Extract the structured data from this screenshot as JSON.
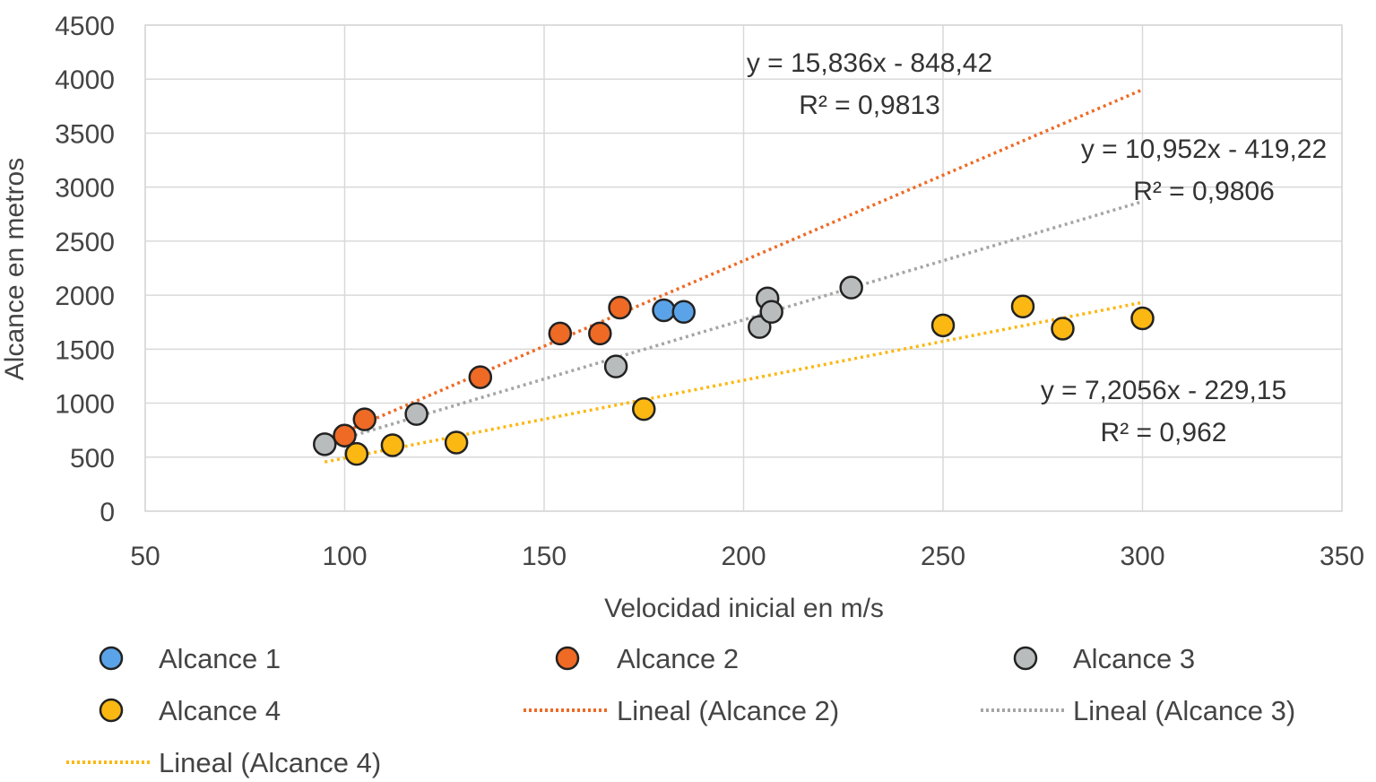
{
  "chart_data": {
    "type": "scatter",
    "title": "",
    "xlabel": "Velocidad inicial en m/s",
    "ylabel": "Alcance en metros",
    "xlim": [
      50,
      350
    ],
    "ylim": [
      0,
      4500
    ],
    "x_ticks": [
      50,
      100,
      150,
      200,
      250,
      300,
      350
    ],
    "y_ticks": [
      0,
      500,
      1000,
      1500,
      2000,
      2500,
      3000,
      3500,
      4000,
      4500
    ],
    "grid": true,
    "legend_position": "bottom",
    "series": [
      {
        "name": "Alcance 1",
        "color": "#5BA3E8",
        "points": [
          [
            180,
            1860
          ],
          [
            185,
            1845
          ]
        ]
      },
      {
        "name": "Alcance 2",
        "color": "#EE6A25",
        "points": [
          [
            100,
            700
          ],
          [
            105,
            850
          ],
          [
            134,
            1240
          ],
          [
            154,
            1645
          ],
          [
            164,
            1645
          ],
          [
            169,
            1885
          ]
        ]
      },
      {
        "name": "Alcance 3",
        "color": "#B8BCBC",
        "points": [
          [
            95,
            620
          ],
          [
            118,
            900
          ],
          [
            168,
            1340
          ],
          [
            204,
            1705
          ],
          [
            206,
            1970
          ],
          [
            207,
            1845
          ],
          [
            227,
            2070
          ]
        ]
      },
      {
        "name": "Alcance 4",
        "color": "#FBB812",
        "points": [
          [
            103,
            530
          ],
          [
            112,
            610
          ],
          [
            128,
            635
          ],
          [
            175,
            945
          ],
          [
            250,
            1720
          ],
          [
            270,
            1895
          ],
          [
            280,
            1690
          ],
          [
            300,
            1785
          ]
        ]
      }
    ],
    "trendlines": [
      {
        "name": "Lineal (Alcance 2)",
        "color": "#EE6A25",
        "slope": 15.836,
        "intercept": -848.42,
        "x_range": [
          95,
          300
        ],
        "equation": "y = 15,836x - 848,42",
        "r2": "R² = 0,9813"
      },
      {
        "name": "Lineal (Alcance 3)",
        "color": "#A5A5A5",
        "slope": 10.952,
        "intercept": -419.22,
        "x_range": [
          95,
          300
        ],
        "equation": "y = 10,952x - 419,22",
        "r2": "R² = 0,9806"
      },
      {
        "name": "Lineal (Alcance 4)",
        "color": "#FBB812",
        "slope": 7.2056,
        "intercept": -229.15,
        "x_range": [
          95,
          300
        ],
        "equation": "y = 7,2056x - 229,15",
        "r2": "R² = 0,962"
      }
    ]
  }
}
